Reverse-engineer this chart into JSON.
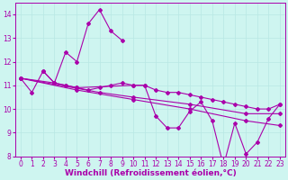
{
  "xlabel": "Windchill (Refroidissement éolien,°C)",
  "bg_color": "#cef5f0",
  "line_color": "#aa00aa",
  "grid_color": "#b8e8e4",
  "series": [
    [
      [
        0,
        11.3
      ],
      [
        1,
        10.7
      ],
      [
        2,
        11.6
      ],
      [
        3,
        11.1
      ],
      [
        4,
        12.4
      ],
      [
        5,
        12.0
      ],
      [
        6,
        13.6
      ],
      [
        7,
        14.2
      ],
      [
        8,
        13.3
      ],
      [
        9,
        12.9
      ]
    ],
    [
      [
        0,
        11.3
      ],
      [
        3,
        11.1
      ],
      [
        4,
        11.0
      ],
      [
        5,
        10.9
      ],
      [
        6,
        10.8
      ],
      [
        7,
        10.9
      ],
      [
        8,
        11.0
      ],
      [
        9,
        11.1
      ],
      [
        10,
        11.0
      ],
      [
        11,
        11.0
      ],
      [
        12,
        10.8
      ],
      [
        13,
        10.7
      ],
      [
        14,
        10.7
      ],
      [
        15,
        10.6
      ],
      [
        16,
        10.5
      ],
      [
        17,
        10.4
      ],
      [
        18,
        10.3
      ],
      [
        19,
        10.2
      ],
      [
        20,
        10.1
      ],
      [
        21,
        10.0
      ],
      [
        22,
        10.0
      ],
      [
        23,
        10.2
      ]
    ],
    [
      [
        2,
        11.6
      ],
      [
        3,
        11.1
      ],
      [
        4,
        11.0
      ],
      [
        5,
        10.9
      ],
      [
        10,
        11.0
      ],
      [
        11,
        11.0
      ],
      [
        12,
        9.7
      ],
      [
        13,
        9.2
      ],
      [
        14,
        9.2
      ],
      [
        15,
        9.9
      ],
      [
        16,
        10.3
      ],
      [
        17,
        9.5
      ],
      [
        18,
        7.6
      ],
      [
        19,
        9.4
      ],
      [
        20,
        8.1
      ],
      [
        21,
        8.6
      ],
      [
        22,
        9.6
      ],
      [
        23,
        10.2
      ]
    ],
    [
      [
        0,
        11.3
      ],
      [
        5,
        10.8
      ],
      [
        10,
        10.4
      ],
      [
        15,
        10.0
      ],
      [
        20,
        9.5
      ],
      [
        23,
        9.3
      ]
    ],
    [
      [
        0,
        11.3
      ],
      [
        7,
        10.7
      ],
      [
        10,
        10.5
      ],
      [
        15,
        10.2
      ],
      [
        20,
        9.8
      ],
      [
        23,
        9.8
      ]
    ]
  ],
  "xlim": [
    -0.5,
    23.5
  ],
  "ylim": [
    8,
    14.5
  ],
  "yticks": [
    8,
    9,
    10,
    11,
    12,
    13,
    14
  ],
  "xticks": [
    0,
    1,
    2,
    3,
    4,
    5,
    6,
    7,
    8,
    9,
    10,
    11,
    12,
    13,
    14,
    15,
    16,
    17,
    18,
    19,
    20,
    21,
    22,
    23
  ],
  "marker": "D",
  "markersize": 2.0,
  "linewidth": 0.8,
  "tick_fontsize": 5.5,
  "label_fontsize": 6.5
}
